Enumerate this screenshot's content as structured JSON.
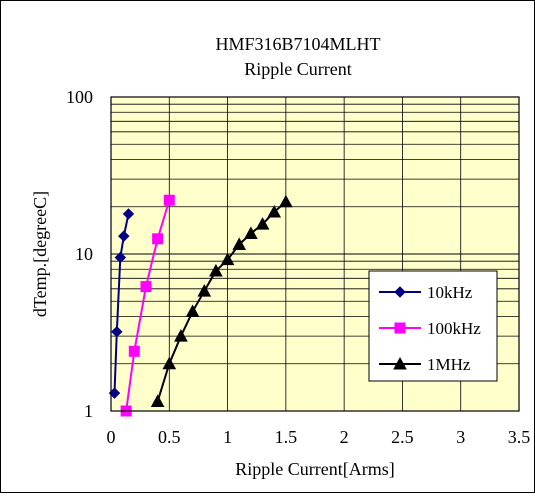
{
  "chart_data": {
    "type": "line",
    "title": "HMF316B7104MLHT",
    "subtitle": "Ripple Current",
    "xlabel": "Ripple Current[Arms]",
    "ylabel": "dTemp.[degreeC]",
    "xlim": [
      0,
      3.5
    ],
    "ylim": [
      1,
      100
    ],
    "yscale": "log",
    "xticks": [
      0,
      0.5,
      1,
      1.5,
      2,
      2.5,
      3,
      3.5
    ],
    "xtick_labels": [
      "0",
      "0.5",
      "1",
      "1.5",
      "2",
      "2.5",
      "3",
      "3.5"
    ],
    "yticks": [
      1,
      10,
      100
    ],
    "ytick_labels": [
      "1",
      "10",
      "100"
    ],
    "grid": true,
    "plot_background": "#ffffcc",
    "legend_position": "right",
    "series": [
      {
        "name": "10kHz",
        "color": "#000080",
        "marker": "diamond",
        "x": [
          0.03,
          0.05,
          0.08,
          0.11,
          0.15
        ],
        "y": [
          1.3,
          3.2,
          9.5,
          13,
          18
        ]
      },
      {
        "name": "100kHz",
        "color": "#ff00ff",
        "marker": "square",
        "x": [
          0.13,
          0.2,
          0.3,
          0.4,
          0.5
        ],
        "y": [
          1.0,
          2.4,
          6.2,
          12.5,
          22
        ]
      },
      {
        "name": "1MHz",
        "color": "#000000",
        "marker": "triangle",
        "x": [
          0.4,
          0.5,
          0.6,
          0.7,
          0.8,
          0.9,
          1.0,
          1.1,
          1.2,
          1.3,
          1.4,
          1.5
        ],
        "y": [
          1.15,
          2.0,
          3.0,
          4.3,
          5.8,
          7.8,
          9.2,
          11.5,
          13.5,
          15.5,
          18.5,
          21.5
        ]
      }
    ]
  }
}
